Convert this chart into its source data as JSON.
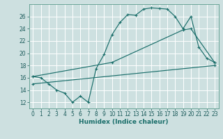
{
  "xlabel": "Humidex (Indice chaleur)",
  "bg_color": "#cde0e0",
  "grid_color": "#b0d0d0",
  "line_color": "#1a6e6a",
  "xlim": [
    -0.5,
    23.5
  ],
  "ylim": [
    11,
    28
  ],
  "yticks": [
    12,
    14,
    16,
    18,
    20,
    22,
    24,
    26
  ],
  "xticks": [
    0,
    1,
    2,
    3,
    4,
    5,
    6,
    7,
    8,
    9,
    10,
    11,
    12,
    13,
    14,
    15,
    16,
    17,
    18,
    19,
    20,
    21,
    22,
    23
  ],
  "line1_x": [
    0,
    1,
    2,
    3,
    4,
    5,
    6,
    7,
    8,
    9,
    10,
    11,
    12,
    13,
    14,
    15,
    16,
    17,
    18,
    19,
    20,
    21,
    22,
    23
  ],
  "line1_y": [
    16.2,
    16.0,
    15.0,
    14.0,
    13.5,
    12.0,
    13.0,
    12.0,
    17.5,
    19.8,
    23.0,
    25.0,
    26.3,
    26.2,
    27.2,
    27.4,
    27.3,
    27.2,
    26.0,
    24.0,
    26.0,
    21.0,
    19.2,
    18.5
  ],
  "line2_x": [
    0,
    10,
    19,
    20,
    23
  ],
  "line2_y": [
    16.2,
    18.5,
    23.8,
    24.0,
    18.5
  ],
  "line3_x": [
    0,
    23
  ],
  "line3_y": [
    15.0,
    18.0
  ],
  "tick_fontsize": 5.5,
  "xlabel_fontsize": 6.5,
  "lw": 0.85,
  "ms": 2.2
}
